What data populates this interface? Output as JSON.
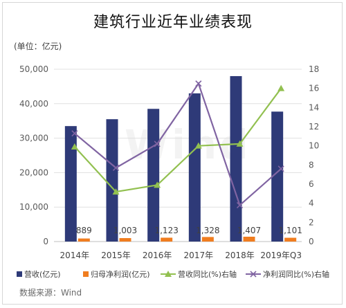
{
  "title": "建筑行业近年业绩表现",
  "unit_label": "(单位：亿元)",
  "source_label": "数据来源：Wind",
  "watermark": "Wind",
  "colors": {
    "revenue": "#2e3a78",
    "profit": "#f07d1f",
    "revenue_growth": "#92c050",
    "profit_growth": "#8064a2",
    "axis_text": "#595959",
    "gridline": "#e0e0e0"
  },
  "chart_data": {
    "type": "bar",
    "categories": [
      "2014年",
      "2015年",
      "2016年",
      "2017年",
      "2018年",
      "2019年Q3"
    ],
    "series": [
      {
        "name": "营收(亿元)",
        "type": "bar",
        "axis": "left",
        "values": [
          33500,
          35500,
          38500,
          43000,
          48000,
          37700
        ]
      },
      {
        "name": "归母净利润(亿元)",
        "type": "bar",
        "axis": "left",
        "values": [
          889,
          1003,
          1123,
          1328,
          1407,
          1101
        ]
      },
      {
        "name": "营收同比(%)右轴",
        "type": "line",
        "axis": "right",
        "marker": "triangle",
        "values": [
          9.9,
          5.2,
          5.9,
          10.0,
          10.2,
          16.0
        ]
      },
      {
        "name": "净利润同比(%)右轴",
        "type": "line",
        "axis": "right",
        "marker": "x",
        "values": [
          11.3,
          7.7,
          10.2,
          16.5,
          3.8,
          7.6
        ]
      }
    ],
    "profit_labels": [
      "889",
      "1,003",
      "1,123",
      "1,328",
      "1,407",
      "1,101"
    ],
    "y_left": {
      "min": 0,
      "max": 50000,
      "ticks": [
        "0",
        "10,000",
        "20,000",
        "30,000",
        "40,000",
        "50,000"
      ],
      "tick_values": [
        0,
        10000,
        20000,
        30000,
        40000,
        50000
      ]
    },
    "y_right": {
      "min": 0,
      "max": 18,
      "ticks": [
        "0",
        "2",
        "4",
        "6",
        "8",
        "10",
        "12",
        "14",
        "16",
        "18"
      ],
      "tick_values": [
        0,
        2,
        4,
        6,
        8,
        10,
        12,
        14,
        16,
        18
      ]
    },
    "legend_position": "bottom"
  }
}
